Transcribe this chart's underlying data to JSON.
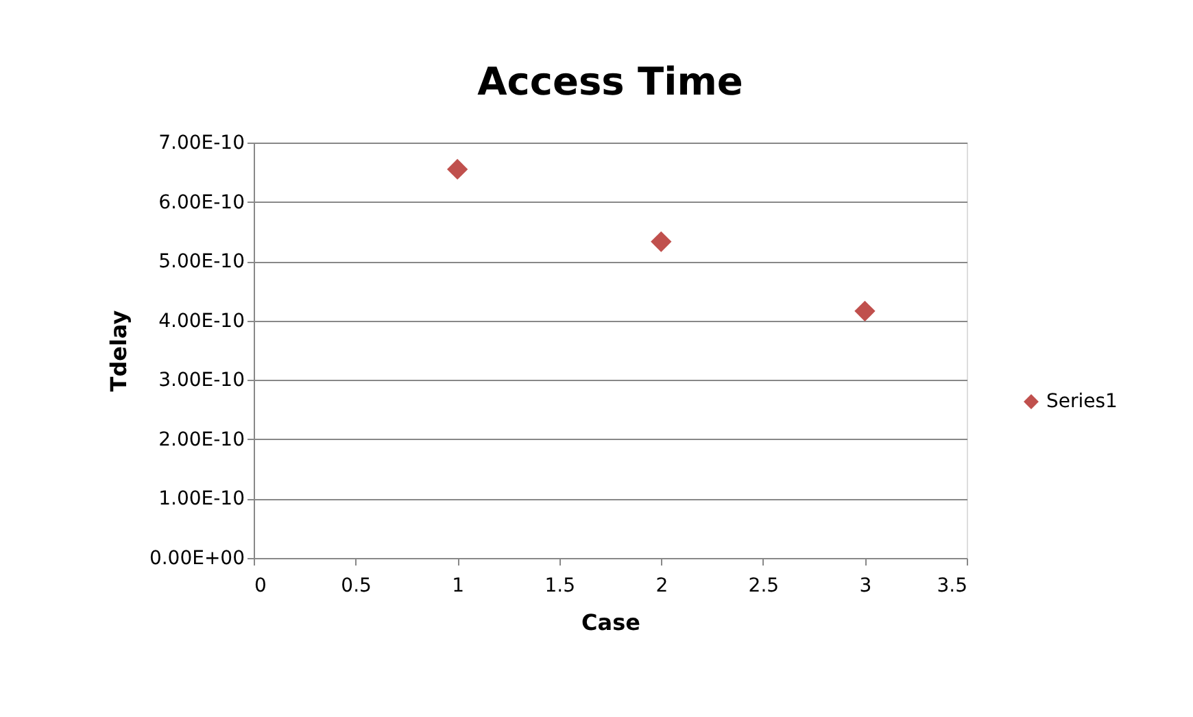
{
  "chart_data": {
    "type": "scatter",
    "title": "Access Time",
    "xlabel": "Case",
    "ylabel": "Tdelay",
    "x": [
      1,
      2,
      3
    ],
    "series": [
      {
        "name": "Series1",
        "color": "#c0504d",
        "values": [
          6.55e-10,
          5.33e-10,
          4.16e-10
        ]
      }
    ],
    "xlim": [
      0,
      3.5
    ],
    "xticks": [
      0,
      0.5,
      1,
      1.5,
      2,
      2.5,
      3,
      3.5
    ],
    "ylim": [
      0,
      7e-10
    ],
    "yticks": [
      {
        "value": 0,
        "label": "0.00E+00"
      },
      {
        "value": 1e-10,
        "label": "1.00E-10"
      },
      {
        "value": 2e-10,
        "label": "2.00E-10"
      },
      {
        "value": 3e-10,
        "label": "3.00E-10"
      },
      {
        "value": 4e-10,
        "label": "4.00E-10"
      },
      {
        "value": 5e-10,
        "label": "5.00E-10"
      },
      {
        "value": 6e-10,
        "label": "6.00E-10"
      },
      {
        "value": 7e-10,
        "label": "7.00E-10"
      }
    ],
    "grid": "y",
    "legend": "right",
    "marker": "diamond"
  }
}
